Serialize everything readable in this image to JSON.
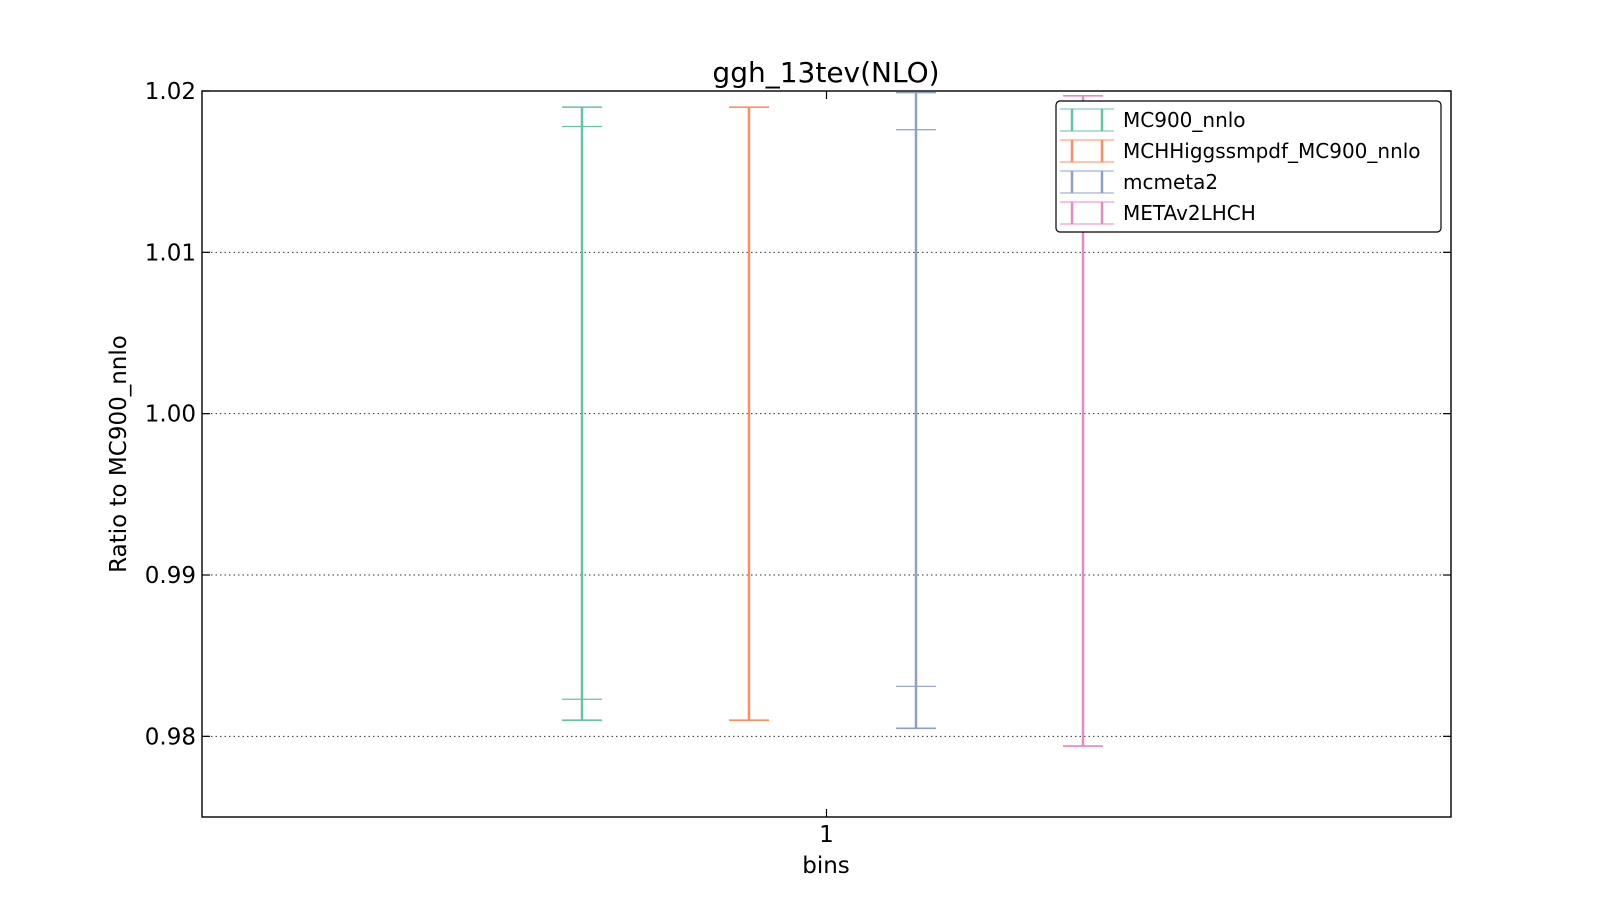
{
  "chart_data": {
    "type": "errorbar",
    "title": "ggh_13tev(NLO)",
    "xlabel": "bins",
    "ylabel": "Ratio to MC900_nnlo",
    "categories": [
      "1"
    ],
    "ylim": [
      0.975,
      1.02
    ],
    "yticks": [
      "0.98",
      "0.99",
      "1.00",
      "1.01",
      "1.02"
    ],
    "grid": true,
    "legend_position": "upper right",
    "series": [
      {
        "name": "MC900_nnlo",
        "color": "#66c2a5",
        "outer": [
          0.981,
          1.019
        ],
        "inner": [
          0.9823,
          1.0178
        ]
      },
      {
        "name": "MCHHiggssmpdf_MC900_nnlo",
        "color": "#fc8d62",
        "outer": [
          0.981,
          1.019
        ],
        "inner": [
          0.981,
          1.019
        ]
      },
      {
        "name": "mcmeta2",
        "color": "#8da0cb",
        "outer": [
          0.9805,
          1.0199
        ],
        "inner": [
          0.9831,
          1.0176
        ]
      },
      {
        "name": "METAv2LHCH",
        "color": "#e78ac3",
        "outer": [
          0.9794,
          1.0197
        ],
        "inner": [
          0.9794,
          1.0197
        ]
      }
    ]
  }
}
